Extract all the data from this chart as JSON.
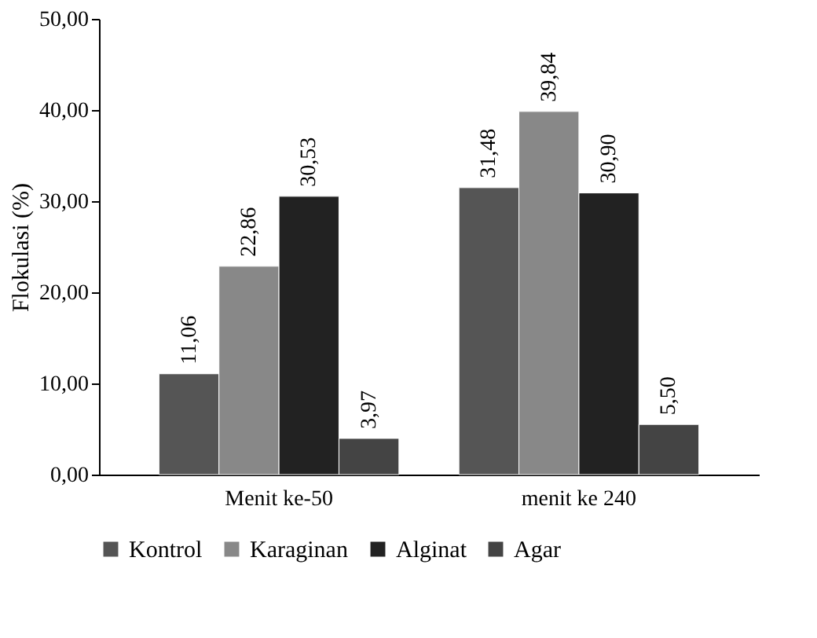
{
  "chart_data": {
    "type": "bar",
    "ylabel": "Flokulasi (%)",
    "categories": [
      "Menit ke-50",
      "menit ke 240"
    ],
    "series": [
      {
        "name": "Kontrol",
        "color": "#555555",
        "values": [
          11.06,
          31.48
        ],
        "value_labels": [
          "11,06",
          "31,48"
        ]
      },
      {
        "name": "Karaginan",
        "color": "#888888",
        "values": [
          22.86,
          39.84
        ],
        "value_labels": [
          "22,86",
          "39,84"
        ]
      },
      {
        "name": "Alginat",
        "color": "#222222",
        "values": [
          30.53,
          30.9
        ],
        "value_labels": [
          "30,53",
          "30,90"
        ]
      },
      {
        "name": "Agar",
        "color": "#444444",
        "values": [
          3.97,
          5.5
        ],
        "value_labels": [
          "3,97",
          "5,50"
        ]
      }
    ],
    "ylim": [
      0,
      50
    ],
    "yticks": [
      {
        "value": 0,
        "label": "0,00"
      },
      {
        "value": 10,
        "label": "10,00"
      },
      {
        "value": 20,
        "label": "20,00"
      },
      {
        "value": 30,
        "label": "30,00"
      },
      {
        "value": 40,
        "label": "40,00"
      },
      {
        "value": 50,
        "label": "50,00"
      }
    ],
    "grid": false,
    "legend": "bottom"
  }
}
